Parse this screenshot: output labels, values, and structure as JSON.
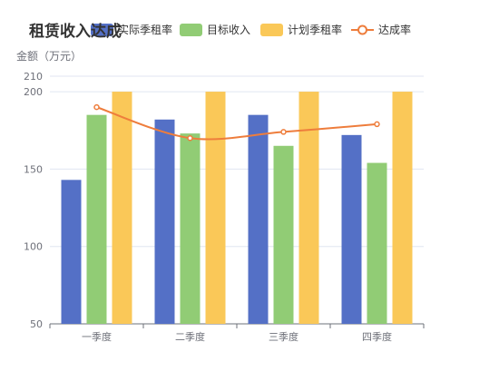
{
  "chart_data": {
    "type": "bar",
    "title": "租赁收入达成",
    "ylabel": "金额（万元）",
    "xlabel": "",
    "categories": [
      "一季度",
      "二季度",
      "三季度",
      "四季度"
    ],
    "ylim": [
      50,
      210
    ],
    "yticks": [
      50,
      100,
      150,
      200,
      210
    ],
    "legend_position": "top",
    "grid": true,
    "series": [
      {
        "name": "实际季租率",
        "type": "bar",
        "color": "#5470c6",
        "values": [
          143,
          182,
          185,
          172
        ]
      },
      {
        "name": "目标收入",
        "type": "bar",
        "color": "#91cc75",
        "values": [
          185,
          173,
          165,
          154
        ]
      },
      {
        "name": "计划季租率",
        "type": "bar",
        "color": "#fac858",
        "values": [
          200,
          200,
          200,
          200
        ]
      },
      {
        "name": "达成率",
        "type": "line",
        "smooth": true,
        "color": "#ee7d3c",
        "values": [
          190,
          170,
          174,
          179
        ]
      }
    ]
  }
}
